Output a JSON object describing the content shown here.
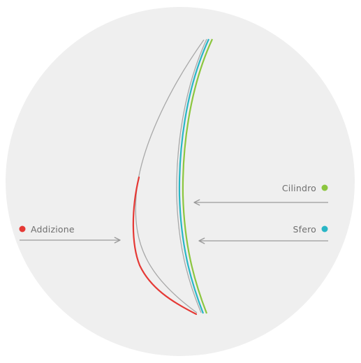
{
  "labels": {
    "addizione": "Addizione",
    "cilindro": "Cilindro",
    "sfero": "Sfero"
  },
  "colors": {
    "background_circle": "#efefef",
    "addizione": "#e53935",
    "cilindro": "#8cc63f",
    "sfero": "#29b6c6",
    "lens_outline": "#a8a8a8",
    "arrow": "#9a9a9a",
    "text": "#6f6f6f"
  }
}
